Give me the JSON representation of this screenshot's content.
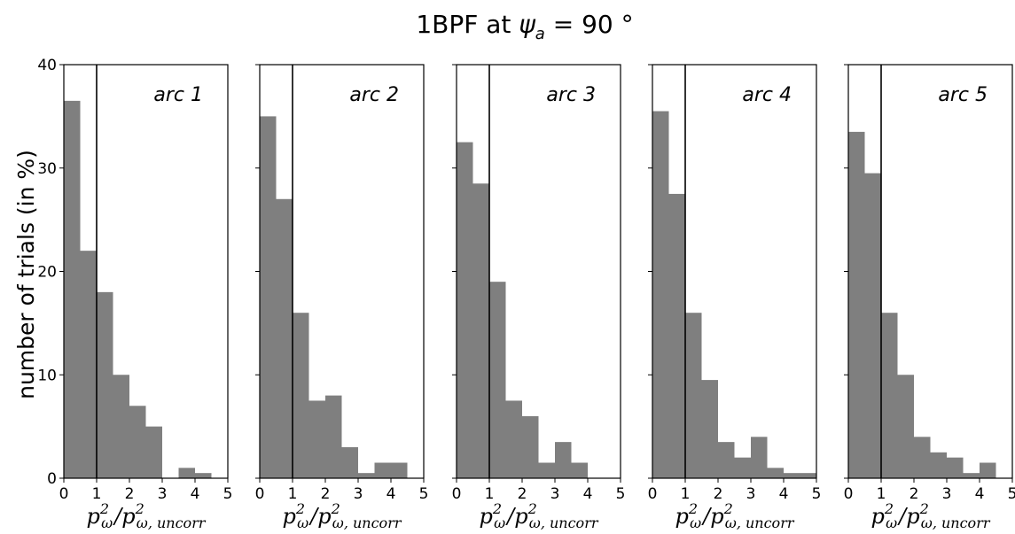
{
  "chart_data": {
    "type": "bar",
    "title_prefix": "1BPF at ",
    "title_math": "ψ",
    "title_sub": "a",
    "title_suffix": " = 90 °",
    "ylabel": "number of trials (in %)",
    "xlabel": {
      "num": "p",
      "num_sup": "2",
      "num_sub": "ω",
      "sep": "/",
      "den": "p",
      "den_sup": "2",
      "den_sub": "ω, uncorr"
    },
    "xlim": [
      0,
      5
    ],
    "ylim": [
      0,
      40
    ],
    "bin_width": 0.5,
    "bin_starts": [
      0,
      0.5,
      1,
      1.5,
      2,
      2.5,
      3,
      3.5,
      4,
      4.5
    ],
    "xticks": [
      "0",
      "1",
      "2",
      "3",
      "4",
      "5"
    ],
    "yticks": [
      "0",
      "10",
      "20",
      "30",
      "40"
    ],
    "reference_line_x": 1,
    "bar_color": "#7f7f7f",
    "panels": [
      {
        "label": "arc 1",
        "values": [
          36.5,
          22,
          18,
          10,
          7,
          5,
          0,
          1,
          0.5,
          0
        ]
      },
      {
        "label": "arc 2",
        "values": [
          35,
          27,
          16,
          7.5,
          8,
          3,
          0.5,
          1.5,
          1.5,
          0
        ]
      },
      {
        "label": "arc 3",
        "values": [
          32.5,
          28.5,
          19,
          7.5,
          6,
          1.5,
          3.5,
          1.5,
          0,
          0
        ]
      },
      {
        "label": "arc 4",
        "values": [
          35.5,
          27.5,
          16,
          9.5,
          3.5,
          2,
          4,
          1,
          0.5,
          0.5
        ]
      },
      {
        "label": "arc 5",
        "values": [
          33.5,
          29.5,
          16,
          10,
          4,
          2.5,
          2,
          0.5,
          1.5,
          0
        ]
      }
    ]
  }
}
